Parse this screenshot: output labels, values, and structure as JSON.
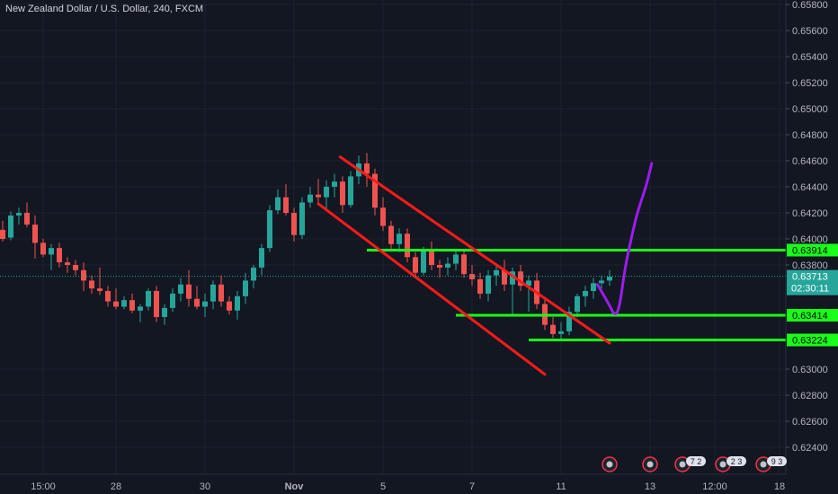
{
  "header": {
    "symbol_title": "New Zealand Dollar / U.S. Dollar, 240, FXCM"
  },
  "colors": {
    "background": "#131722",
    "grid": "#1e222d",
    "axis_text": "#b2b5be",
    "candle_up": "#26a69a",
    "candle_down": "#ef5350",
    "channel": "#ff1a1a",
    "levels": "#19ff19",
    "projection": "#9c1cf0",
    "last_price_line": "#26a69a",
    "last_price_badge": "#26a69a"
  },
  "price_axis": {
    "ticks": [
      "0.65800",
      "0.65600",
      "0.65400",
      "0.65200",
      "0.65000",
      "0.64800",
      "0.64600",
      "0.64400",
      "0.64200",
      "0.64000",
      "0.63800",
      "0.63000",
      "0.62800",
      "0.62600",
      "0.62400"
    ],
    "tick_values": [
      0.658,
      0.656,
      0.654,
      0.652,
      0.65,
      0.648,
      0.646,
      0.644,
      0.642,
      0.64,
      0.638,
      0.63,
      0.628,
      0.626,
      0.624
    ],
    "last_price": "0.63713",
    "last_price_value": 0.63713,
    "countdown": "02:30:11",
    "level_labels": [
      {
        "text": "0.63914",
        "value": 0.63914
      },
      {
        "text": "0.63414",
        "value": 0.63414
      },
      {
        "text": "0.63224",
        "value": 0.63224
      }
    ]
  },
  "time_axis": {
    "ticks": [
      {
        "label": "15:00",
        "bar": 5
      },
      {
        "label": "28",
        "bar": 14
      },
      {
        "label": "30",
        "bar": 25
      },
      {
        "label": "Nov",
        "bar": 36
      },
      {
        "label": "5",
        "bar": 47
      },
      {
        "label": "7",
        "bar": 58
      },
      {
        "label": "11",
        "bar": 69
      },
      {
        "label": "13",
        "bar": 80
      },
      {
        "label": "12:00",
        "bar": 88
      },
      {
        "label": "18",
        "bar": 96
      }
    ],
    "event_flags": [
      {
        "name": "event-flag",
        "bar": 75,
        "badge": ""
      },
      {
        "name": "event-flag",
        "bar": 80,
        "badge": ""
      },
      {
        "name": "event-flag",
        "bar": 84,
        "badge": "7 2"
      },
      {
        "name": "event-flag",
        "bar": 89,
        "badge": "2 3"
      },
      {
        "name": "event-flag",
        "bar": 94,
        "badge": "9 3"
      }
    ]
  },
  "chart_data": {
    "type": "candlestick",
    "title": "New Zealand Dollar / U.S. Dollar, 240, FXCM",
    "ylim": [
      0.6225,
      0.659
    ],
    "candles": [
      [
        0.6407,
        0.6414,
        0.6398,
        0.64
      ],
      [
        0.6401,
        0.6421,
        0.6399,
        0.6418
      ],
      [
        0.6418,
        0.6424,
        0.6411,
        0.642
      ],
      [
        0.642,
        0.6428,
        0.6409,
        0.6411
      ],
      [
        0.6411,
        0.6418,
        0.6385,
        0.6397
      ],
      [
        0.6397,
        0.64,
        0.6386,
        0.6388
      ],
      [
        0.6388,
        0.6396,
        0.6376,
        0.6393
      ],
      [
        0.6393,
        0.6397,
        0.6378,
        0.6382
      ],
      [
        0.6382,
        0.6386,
        0.6374,
        0.638
      ],
      [
        0.638,
        0.6384,
        0.6372,
        0.6376
      ],
      [
        0.6376,
        0.6382,
        0.636,
        0.6368
      ],
      [
        0.6368,
        0.6372,
        0.6358,
        0.6362
      ],
      [
        0.6362,
        0.6378,
        0.6357,
        0.636
      ],
      [
        0.636,
        0.6364,
        0.6348,
        0.6352
      ],
      [
        0.6352,
        0.6362,
        0.6346,
        0.6348
      ],
      [
        0.6348,
        0.6356,
        0.6346,
        0.6353
      ],
      [
        0.6353,
        0.6358,
        0.6343,
        0.6345
      ],
      [
        0.6345,
        0.635,
        0.6336,
        0.6348
      ],
      [
        0.6348,
        0.6362,
        0.6345,
        0.636
      ],
      [
        0.636,
        0.6364,
        0.6336,
        0.634
      ],
      [
        0.634,
        0.635,
        0.6334,
        0.6347
      ],
      [
        0.6347,
        0.6362,
        0.6344,
        0.6358
      ],
      [
        0.6358,
        0.637,
        0.6352,
        0.6365
      ],
      [
        0.6365,
        0.6376,
        0.6348,
        0.6354
      ],
      [
        0.6354,
        0.6364,
        0.6346,
        0.6348
      ],
      [
        0.6348,
        0.6358,
        0.634,
        0.6352
      ],
      [
        0.6352,
        0.6368,
        0.6346,
        0.6365
      ],
      [
        0.6365,
        0.6372,
        0.6348,
        0.6352
      ],
      [
        0.6352,
        0.6356,
        0.6342,
        0.6345
      ],
      [
        0.6345,
        0.636,
        0.6338,
        0.6356
      ],
      [
        0.6356,
        0.6374,
        0.635,
        0.6368
      ],
      [
        0.6368,
        0.638,
        0.6362,
        0.6378
      ],
      [
        0.6378,
        0.6396,
        0.6372,
        0.6393
      ],
      [
        0.6393,
        0.6426,
        0.639,
        0.6422
      ],
      [
        0.6422,
        0.6438,
        0.6419,
        0.6432
      ],
      [
        0.6432,
        0.6442,
        0.6418,
        0.642
      ],
      [
        0.642,
        0.6424,
        0.6398,
        0.6403
      ],
      [
        0.6403,
        0.6432,
        0.64,
        0.6428
      ],
      [
        0.6428,
        0.644,
        0.6424,
        0.6434
      ],
      [
        0.6434,
        0.6446,
        0.6426,
        0.6432
      ],
      [
        0.6432,
        0.6445,
        0.6422,
        0.644
      ],
      [
        0.644,
        0.645,
        0.6432,
        0.6444
      ],
      [
        0.6444,
        0.6448,
        0.642,
        0.6426
      ],
      [
        0.6426,
        0.6452,
        0.6424,
        0.6448
      ],
      [
        0.6448,
        0.6464,
        0.6442,
        0.6458
      ],
      [
        0.6458,
        0.6466,
        0.644,
        0.645
      ],
      [
        0.645,
        0.6454,
        0.6418,
        0.6424
      ],
      [
        0.6424,
        0.6432,
        0.6406,
        0.641
      ],
      [
        0.641,
        0.6414,
        0.6392,
        0.6396
      ],
      [
        0.6396,
        0.6408,
        0.639,
        0.6404
      ],
      [
        0.6404,
        0.6408,
        0.6382,
        0.6386
      ],
      [
        0.6386,
        0.639,
        0.637,
        0.6374
      ],
      [
        0.6374,
        0.6394,
        0.6372,
        0.6391
      ],
      [
        0.6391,
        0.6398,
        0.6376,
        0.638
      ],
      [
        0.638,
        0.6384,
        0.637,
        0.6378
      ],
      [
        0.6378,
        0.6386,
        0.6372,
        0.6381
      ],
      [
        0.6381,
        0.6392,
        0.6376,
        0.6388
      ],
      [
        0.6388,
        0.6392,
        0.637,
        0.6373
      ],
      [
        0.6373,
        0.638,
        0.6364,
        0.6369
      ],
      [
        0.6369,
        0.6374,
        0.6354,
        0.6358
      ],
      [
        0.6358,
        0.6376,
        0.6352,
        0.6372
      ],
      [
        0.6372,
        0.638,
        0.6364,
        0.6376
      ],
      [
        0.6376,
        0.6384,
        0.636,
        0.6365
      ],
      [
        0.6365,
        0.6378,
        0.6342,
        0.6375
      ],
      [
        0.6375,
        0.638,
        0.636,
        0.6364
      ],
      [
        0.6364,
        0.6372,
        0.6344,
        0.6368
      ],
      [
        0.6368,
        0.6374,
        0.6346,
        0.635
      ],
      [
        0.635,
        0.6354,
        0.633,
        0.6334
      ],
      [
        0.6334,
        0.634,
        0.6324,
        0.6327
      ],
      [
        0.6327,
        0.6336,
        0.6322,
        0.6329
      ],
      [
        0.6329,
        0.6348,
        0.6326,
        0.6344
      ],
      [
        0.6344,
        0.6358,
        0.634,
        0.6356
      ],
      [
        0.6356,
        0.6364,
        0.6348,
        0.636
      ],
      [
        0.636,
        0.637,
        0.6354,
        0.6366
      ],
      [
        0.6366,
        0.6372,
        0.6362,
        0.6368
      ],
      [
        0.6368,
        0.6376,
        0.6364,
        0.6371
      ]
    ],
    "horizontal_levels": [
      {
        "price": 0.63914,
        "from_bar": 45
      },
      {
        "price": 0.63414,
        "from_bar": 56
      },
      {
        "price": 0.63224,
        "from_bar": 65
      }
    ],
    "trend_channel": [
      {
        "from": {
          "bar": 41.7,
          "price": 0.6463
        },
        "to": {
          "bar": 75,
          "price": 0.632
        }
      },
      {
        "from": {
          "bar": 39,
          "price": 0.6427
        },
        "to": {
          "bar": 67,
          "price": 0.6296
        }
      }
    ],
    "projection_path": [
      [
        73.5,
        0.6365
      ],
      [
        75.0,
        0.6349
      ],
      [
        75.6,
        0.6341
      ],
      [
        76.2,
        0.6346
      ],
      [
        76.9,
        0.6378
      ],
      [
        77.7,
        0.6401
      ],
      [
        78.4,
        0.642
      ],
      [
        79.5,
        0.644
      ],
      [
        80.2,
        0.6458
      ]
    ]
  }
}
